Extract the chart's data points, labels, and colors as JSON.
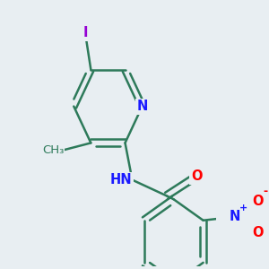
{
  "background_color": "#e8eef2",
  "bond_color": "#2d7a5a",
  "bond_width": 1.8,
  "figsize": [
    3.0,
    3.0
  ],
  "dpi": 100,
  "labels": {
    "N_py": {
      "text": "N",
      "color": "#1a1aff",
      "fontsize": 10.5,
      "fontweight": "bold"
    },
    "I": {
      "text": "I",
      "color": "#9400d3",
      "fontsize": 10.5,
      "fontweight": "bold"
    },
    "CH3": {
      "text": "CH₃",
      "color": "#2d7a5a",
      "fontsize": 9.5,
      "fontweight": "normal"
    },
    "NH": {
      "text": "HN",
      "color": "#1a1aff",
      "fontsize": 10.5,
      "fontweight": "bold"
    },
    "O": {
      "text": "O",
      "color": "#ff0000",
      "fontsize": 10.5,
      "fontweight": "bold"
    },
    "NO2_N": {
      "text": "N",
      "color": "#1a1aff",
      "fontsize": 10.5,
      "fontweight": "bold"
    },
    "NO2_plus": {
      "text": "+",
      "color": "#1a1aff",
      "fontsize": 8,
      "fontweight": "bold"
    },
    "NO2_O": {
      "text": "O",
      "color": "#ff0000",
      "fontsize": 10.5,
      "fontweight": "bold"
    },
    "NO2_minus": {
      "text": "-",
      "color": "#ff0000",
      "fontsize": 9,
      "fontweight": "bold"
    }
  }
}
